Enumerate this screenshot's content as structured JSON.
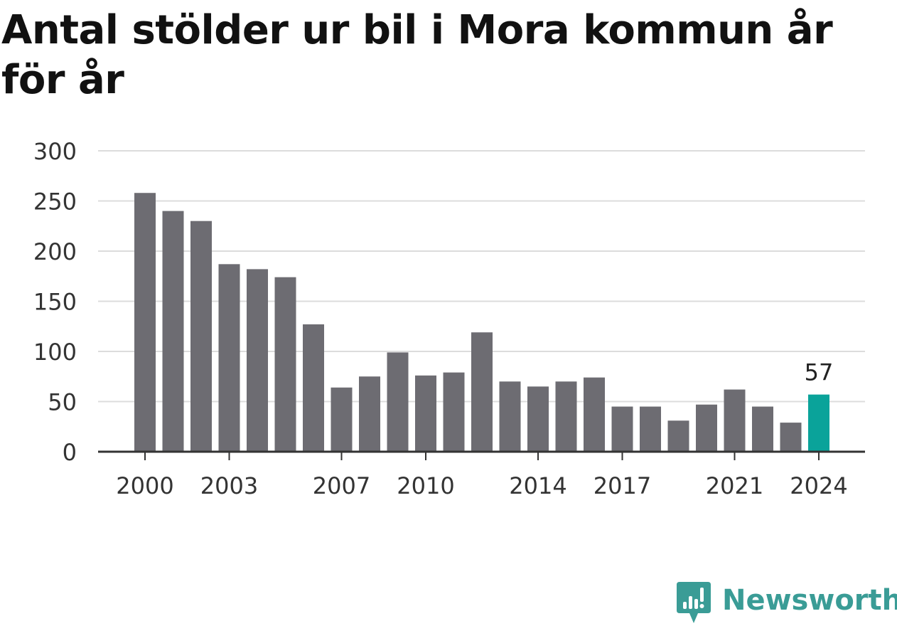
{
  "title": "Antal stölder ur bil i Mora kommun år för år",
  "brand": {
    "name": "Newsworthy",
    "icon": "newsworthy-logo-icon",
    "color": "#3a9c96"
  },
  "colors": {
    "bar": "#6d6c72",
    "highlight": "#0aa39a",
    "grid": "#dcdcdc",
    "axis": "#333333",
    "text": "#333333"
  },
  "chart_data": {
    "type": "bar",
    "title": "Antal stölder ur bil i Mora kommun år för år",
    "xlabel": "",
    "ylabel": "",
    "ylim": [
      0,
      300
    ],
    "yticks": [
      0,
      50,
      100,
      150,
      200,
      250,
      300
    ],
    "grid": true,
    "categories": [
      2000,
      2001,
      2002,
      2003,
      2004,
      2005,
      2006,
      2007,
      2008,
      2009,
      2010,
      2011,
      2012,
      2013,
      2014,
      2015,
      2016,
      2017,
      2018,
      2019,
      2020,
      2021,
      2022,
      2023,
      2024
    ],
    "values": [
      258,
      240,
      230,
      187,
      182,
      174,
      127,
      64,
      75,
      99,
      76,
      79,
      119,
      70,
      65,
      70,
      74,
      45,
      45,
      31,
      47,
      62,
      45,
      29,
      57
    ],
    "xtick_labels": [
      "2000",
      "2003",
      "2007",
      "2010",
      "2014",
      "2017",
      "2021",
      "2024"
    ],
    "highlight": {
      "category": 2024,
      "label": "57"
    }
  }
}
